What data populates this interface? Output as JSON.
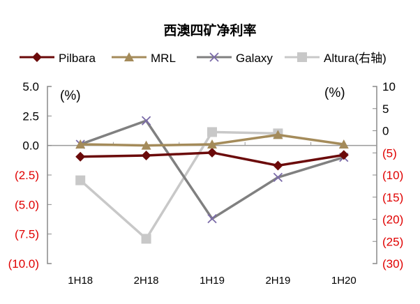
{
  "chart_data": {
    "type": "line",
    "title": "西澳四矿净利率",
    "categories": [
      "1H18",
      "2H18",
      "1H19",
      "2H19",
      "1H20"
    ],
    "left_axis": {
      "unit_label": "(%)",
      "ylim": [
        -10,
        5
      ],
      "ticks": [
        5,
        2.5,
        0,
        -2.5,
        -5,
        -7.5,
        -10
      ],
      "tick_labels": [
        "5.0",
        "2.5",
        "0.0",
        "(2.5)",
        "(5.0)",
        "(7.5)",
        "(10.0)"
      ]
    },
    "right_axis": {
      "unit_label": "(%)",
      "ylim": [
        -30,
        10
      ],
      "ticks": [
        10,
        5,
        0,
        -5,
        -10,
        -15,
        -20,
        -25,
        -30
      ],
      "tick_labels": [
        "10",
        "5",
        "0",
        "(5)",
        "(10)",
        "(15)",
        "(20)",
        "(25)",
        "(30)"
      ]
    },
    "negative_label_color": "#e00000",
    "legend_position": "top",
    "series": [
      {
        "name": "Pilbara",
        "axis": "left",
        "color": "#6b0a0a",
        "marker": "diamond",
        "marker_color": "#6b0a0a",
        "values": [
          -0.95,
          -0.85,
          -0.6,
          -1.7,
          -0.8
        ]
      },
      {
        "name": "MRL",
        "axis": "left",
        "color": "#a48b5a",
        "marker": "triangle",
        "marker_color": "#a48b5a",
        "values": [
          0.1,
          0.0,
          0.1,
          0.9,
          0.1
        ]
      },
      {
        "name": "Galaxy",
        "axis": "left",
        "color": "#808080",
        "marker": "x",
        "marker_color": "#7a6aa8",
        "values": [
          0.1,
          2.1,
          -6.2,
          -2.7,
          -1.0
        ]
      },
      {
        "name": "Altura(右轴)",
        "axis": "right",
        "color": "#c8c8c8",
        "marker": "square",
        "marker_color": "#c8c8c8",
        "values": [
          -11.2,
          -24.4,
          -0.3,
          -0.6,
          null
        ]
      }
    ]
  }
}
